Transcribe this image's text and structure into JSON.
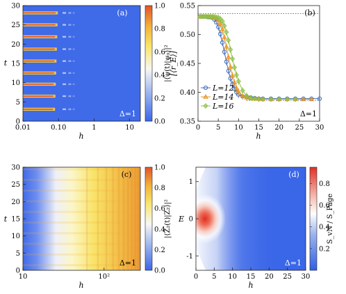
{
  "chart_data": [
    {
      "id": "a",
      "type": "heatmap",
      "panel_label": "(a)",
      "annotation": "Δ=1",
      "xlabel": "h",
      "ylabel": "t",
      "colorbar_label": "|⟨ψ(t)|ψ₀⟩|²",
      "x_scale": "log",
      "xlim": [
        0.01,
        20
      ],
      "ylim": [
        0,
        30
      ],
      "x_ticks": [
        "0.01",
        "0.10",
        "1",
        "10"
      ],
      "y_ticks": [
        "0",
        "5",
        "10",
        "15",
        "20",
        "25",
        "30"
      ],
      "colorbar_ticks": [
        "0.0",
        "0.2",
        "0.4",
        "0.6",
        "0.8",
        "1.0"
      ],
      "revival_times": [
        3.1,
        6.5,
        9.6,
        12.5,
        15.6,
        18.7,
        21.9,
        25.0,
        28.1
      ]
    },
    {
      "id": "b",
      "type": "line",
      "panel_label": "(b)",
      "annotation": "Δ=1",
      "xlabel": "h",
      "ylabel": "[⟨r_E⟩]",
      "xlim": [
        0,
        30
      ],
      "ylim": [
        0.35,
        0.55
      ],
      "x_ticks": [
        "0",
        "5",
        "10",
        "15",
        "20",
        "25",
        "30"
      ],
      "y_ticks": [
        "0.35",
        "0.40",
        "0.45",
        "0.50",
        "0.55"
      ],
      "reference_lines": [
        0.536,
        0.386
      ],
      "series": [
        {
          "name": "L=12",
          "color": "#3f6fbf",
          "marker": "circle",
          "x": [
            0.5,
            1,
            1.5,
            2,
            2.5,
            3,
            3.5,
            4,
            4.5,
            5,
            5.5,
            6,
            6.5,
            7,
            7.5,
            8,
            8.5,
            9,
            9.5,
            10,
            11,
            12,
            13,
            14,
            15,
            16,
            18,
            20,
            22,
            24,
            26,
            28,
            30
          ],
          "y": [
            0.531,
            0.531,
            0.531,
            0.531,
            0.53,
            0.53,
            0.529,
            0.526,
            0.521,
            0.513,
            0.501,
            0.486,
            0.47,
            0.453,
            0.437,
            0.424,
            0.414,
            0.406,
            0.4,
            0.396,
            0.393,
            0.392,
            0.391,
            0.39,
            0.389,
            0.389,
            0.389,
            0.389,
            0.389,
            0.389,
            0.389,
            0.389,
            0.389
          ]
        },
        {
          "name": "L=14",
          "color": "#e8931e",
          "marker": "triangle",
          "x": [
            0.5,
            1,
            1.5,
            2,
            2.5,
            3,
            3.5,
            4,
            4.5,
            5,
            5.5,
            6,
            6.5,
            7,
            7.5,
            8,
            8.5,
            9,
            9.5,
            10,
            11,
            12,
            13,
            14,
            15,
            16,
            18,
            20,
            22,
            24,
            26,
            28
          ],
          "y": [
            0.531,
            0.531,
            0.531,
            0.531,
            0.531,
            0.531,
            0.53,
            0.529,
            0.528,
            0.525,
            0.519,
            0.509,
            0.495,
            0.479,
            0.461,
            0.444,
            0.429,
            0.417,
            0.407,
            0.401,
            0.394,
            0.391,
            0.39,
            0.389,
            0.389,
            0.388,
            0.388,
            0.388,
            0.388,
            0.388,
            0.388,
            0.388
          ]
        },
        {
          "name": "L=16",
          "color": "#8fbf4a",
          "marker": "diamond",
          "x": [
            0.5,
            1,
            1.5,
            2,
            2.5,
            3,
            3.5,
            4,
            4.5,
            5,
            5.5,
            6,
            6.5,
            7,
            7.5,
            8,
            8.5,
            9,
            9.5,
            10,
            11,
            12,
            13,
            14,
            15,
            16,
            18,
            20,
            22,
            24
          ],
          "y": [
            0.531,
            0.531,
            0.531,
            0.531,
            0.531,
            0.531,
            0.531,
            0.531,
            0.53,
            0.529,
            0.527,
            0.523,
            0.515,
            0.504,
            0.49,
            0.474,
            0.458,
            0.443,
            0.43,
            0.419,
            0.403,
            0.394,
            0.39,
            0.389,
            0.388,
            0.388,
            0.388,
            0.388,
            0.388,
            0.388
          ]
        }
      ]
    },
    {
      "id": "c",
      "type": "heatmap",
      "panel_label": "(c)",
      "annotation": "Δ=1",
      "xlabel": "h",
      "ylabel": "t",
      "colorbar_label": "|⟨Z₂(t)|Z₂⟩|²",
      "x_scale": "log",
      "xlim": [
        10,
        280
      ],
      "ylim": [
        0,
        30
      ],
      "x_ticks": [
        "10",
        "10²"
      ],
      "y_ticks": [
        "0",
        "5",
        "10",
        "15",
        "20",
        "25",
        "30"
      ],
      "colorbar_ticks": [
        "0.0",
        "0.2",
        "0.4",
        "0.6",
        "0.8",
        "1.0"
      ]
    },
    {
      "id": "d",
      "type": "heatmap",
      "panel_label": "(d)",
      "annotation": "Δ=1",
      "xlabel": "h",
      "ylabel": "E",
      "colorbar_label": "S_vN / S_Page",
      "xlim": [
        0,
        30
      ],
      "ylim": [
        -1,
        1
      ],
      "x_ticks": [
        "0",
        "5",
        "10",
        "15",
        "20",
        "25",
        "30"
      ],
      "y_ticks": [
        "-1",
        "0",
        "1"
      ],
      "colorbar_ticks": [
        "0.2",
        "0.4",
        "0.6",
        "0.8"
      ]
    }
  ],
  "colors": {
    "low": "#3a66e8",
    "mid": "#ffffff",
    "high_yellow": "#f6d64a",
    "high": "#e8382a"
  }
}
